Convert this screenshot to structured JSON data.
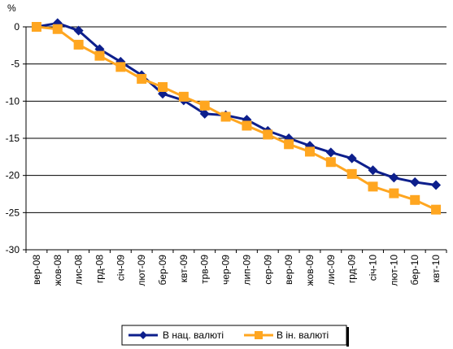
{
  "chart_data": {
    "type": "line",
    "title_fragment": "",
    "ylabel": "%",
    "categories": [
      "вер-08",
      "жов-08",
      "лис-08",
      "грд-08",
      "січ-09",
      "лют-09",
      "бер-09",
      "квт-09",
      "трв-09",
      "чер-09",
      "лип-09",
      "сер-09",
      "вер-09",
      "жов-09",
      "лис-09",
      "грд-09",
      "січ-10",
      "лют-10",
      "бер-10",
      "квт-10"
    ],
    "ylim": [
      -30,
      0
    ],
    "yticks": [
      0,
      -5,
      -10,
      -15,
      -20,
      -25,
      -30
    ],
    "grid": true,
    "legend_position": "bottom",
    "series": [
      {
        "name": "В нац. валюті",
        "color": "#0d1f8c",
        "marker": "diamond",
        "values": [
          0,
          0.5,
          -0.5,
          -3,
          -4.7,
          -6.5,
          -9,
          -9.9,
          -11.7,
          -11.9,
          -12.5,
          -14,
          -15,
          -16,
          -16.9,
          -17.7,
          -19.3,
          -20.3,
          -20.9,
          -21.3
        ]
      },
      {
        "name": "В ін. валюті",
        "color": "#ffa620",
        "marker": "square",
        "values": [
          0,
          -0.3,
          -2.4,
          -3.9,
          -5.4,
          -7,
          -8.1,
          -9.4,
          -10.6,
          -12.1,
          -13.3,
          -14.5,
          -15.8,
          -16.8,
          -18.2,
          -19.8,
          -21.5,
          -22.4,
          -23.3,
          -24.6
        ]
      }
    ]
  }
}
